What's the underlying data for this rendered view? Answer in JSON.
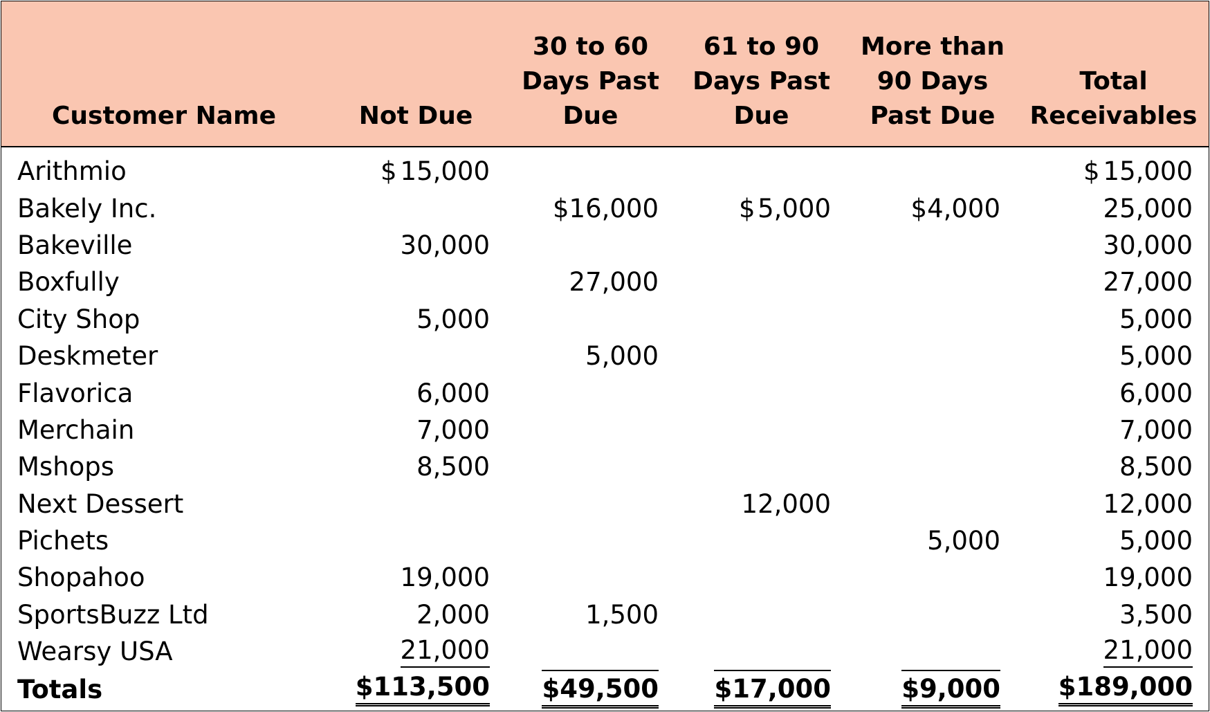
{
  "columns": [
    "Customer Name",
    "Not Due",
    "30 to 60\nDays Past\nDue",
    "61 to 90\nDays Past\nDue",
    "More than\n90 Days\nPast Due",
    "Total\nReceivables"
  ],
  "rows": [
    {
      "name": "Arithmio",
      "not_due": "15,000",
      "d30_60": "",
      "d61_90": "",
      "over90": "",
      "total": "15,000"
    },
    {
      "name": "Bakely Inc.",
      "not_due": "",
      "d30_60": "$16,000",
      "d61_90": "5,000",
      "over90": "$4,000",
      "total": "25,000"
    },
    {
      "name": "Bakeville",
      "not_due": "30,000",
      "d30_60": "",
      "d61_90": "",
      "over90": "",
      "total": "30,000"
    },
    {
      "name": "Boxfully",
      "not_due": "",
      "d30_60": "27,000",
      "d61_90": "",
      "over90": "",
      "total": "27,000"
    },
    {
      "name": "City Shop",
      "not_due": "5,000",
      "d30_60": "",
      "d61_90": "",
      "over90": "",
      "total": "5,000"
    },
    {
      "name": "Deskmeter",
      "not_due": "",
      "d30_60": "5,000",
      "d61_90": "",
      "over90": "",
      "total": "5,000"
    },
    {
      "name": "Flavorica",
      "not_due": "6,000",
      "d30_60": "",
      "d61_90": "",
      "over90": "",
      "total": "6,000"
    },
    {
      "name": "Merchain",
      "not_due": "7,000",
      "d30_60": "",
      "d61_90": "",
      "over90": "",
      "total": "7,000"
    },
    {
      "name": "Mshops",
      "not_due": "8,500",
      "d30_60": "",
      "d61_90": "",
      "over90": "",
      "total": "8,500"
    },
    {
      "name": "Next Dessert",
      "not_due": "",
      "d30_60": "",
      "d61_90": "12,000",
      "over90": "",
      "total": "12,000"
    },
    {
      "name": "Pichets",
      "not_due": "",
      "d30_60": "",
      "d61_90": "",
      "over90": "5,000",
      "total": "5,000"
    },
    {
      "name": "Shopahoo",
      "not_due": "19,000",
      "d30_60": "",
      "d61_90": "",
      "over90": "",
      "total": "19,000"
    },
    {
      "name": "SportsBuzz Ltd",
      "not_due": "2,000",
      "d30_60": "1,500",
      "d61_90": "",
      "over90": "",
      "total": "3,500"
    },
    {
      "name": "Wearsy USA",
      "not_due": "21,000",
      "d30_60": "",
      "d61_90": "",
      "over90": "",
      "total": "21,000"
    }
  ],
  "currency_symbol": "$",
  "totals": {
    "name": "Totals",
    "not_due": "$113,500",
    "d30_60": "$49,500",
    "d61_90": "$17,000",
    "over90": "$9,000",
    "total": "$189,000"
  },
  "colors": {
    "header_background": "#fac6b1"
  }
}
